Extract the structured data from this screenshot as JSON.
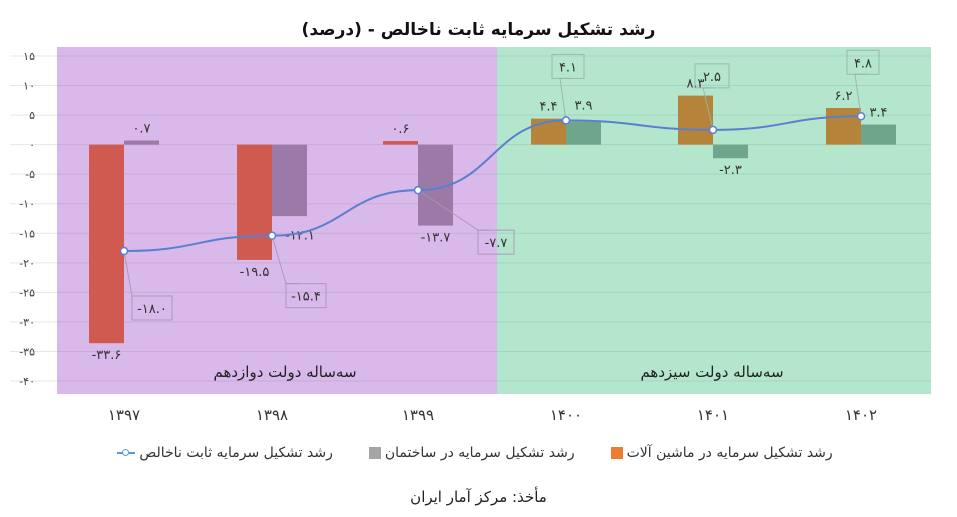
{
  "title": "رشد تشکیل سرمایه ثابت ناخالص - (درصد)",
  "source": "مأخذ: مرکز آمار ایران",
  "regions": [
    {
      "label": "سه‌ساله دولت دوازدهم",
      "color": "#d9b8ea",
      "years": [
        "۱۳۹۷",
        "۱۳۹۸",
        "۱۳۹۹"
      ]
    },
    {
      "label": "سه‌ساله دولت سیزدهم",
      "color": "#b3e6cd",
      "years": [
        "۱۴۰۰",
        "۱۴۰۱",
        "۱۴۰۲"
      ]
    }
  ],
  "legend": [
    {
      "label": "رشد تشکیل سرمایه ثابت ناخالص",
      "type": "line",
      "color": "#5b9bd5"
    },
    {
      "label": "رشد تشکیل سرمایه در ساختمان",
      "type": "bar",
      "color": "#a5a5a5"
    },
    {
      "label": "رشد تشکیل سرمایه در ماشین آلات",
      "type": "bar",
      "color": "#ed7d31"
    }
  ],
  "y_ticks": [
    "۱۵",
    "۱۰",
    "۵",
    "۰",
    "-۵",
    "-۱۰",
    "-۱۵",
    "-۲۰",
    "-۲۵",
    "-۳۰",
    "-۳۵",
    "-۴۰"
  ],
  "chart_data": {
    "type": "bar",
    "title": "رشد تشکیل سرمایه ثابت ناخالص - (درصد)",
    "categories": [
      "1397",
      "1398",
      "1399",
      "1400",
      "1401",
      "1402"
    ],
    "category_labels": [
      "۱۳۹۷",
      "۱۳۹۸",
      "۱۳۹۹",
      "۱۴۰۰",
      "۱۴۰۱",
      "۱۴۰۲"
    ],
    "series": [
      {
        "name": "رشد تشکیل سرمایه در ماشین آلات",
        "type": "bar",
        "values": [
          -33.6,
          -19.5,
          0.6,
          4.4,
          8.3,
          6.2
        ],
        "labels": [
          "-۳۳.۶",
          "-۱۹.۵",
          "۰.۶",
          "۴.۴",
          "۸.۳",
          "۶.۲"
        ]
      },
      {
        "name": "رشد تشکیل سرمایه در ساختمان",
        "type": "bar",
        "values": [
          0.7,
          -12.1,
          -13.7,
          3.9,
          -2.3,
          3.4
        ],
        "labels": [
          "۰.۷",
          "-۱۲.۱",
          "-۱۳.۷",
          "۳.۹",
          "-۲.۳",
          "۳.۴"
        ]
      },
      {
        "name": "رشد تشکیل سرمایه ثابت ناخالص",
        "type": "line",
        "values": [
          -18.0,
          -15.4,
          -7.7,
          4.1,
          2.5,
          4.8
        ],
        "labels": [
          "-۱۸.۰",
          "-۱۵.۴",
          "-۷.۷",
          "۴.۱",
          "۲.۵",
          "۴.۸"
        ]
      }
    ],
    "xlabel": "",
    "ylabel": "",
    "ylim": [
      -40,
      15
    ],
    "grid": true,
    "legend_position": "bottom",
    "annotations": [
      "سه‌ساله دولت دوازدهم",
      "سه‌ساله دولت سیزدهم"
    ]
  }
}
